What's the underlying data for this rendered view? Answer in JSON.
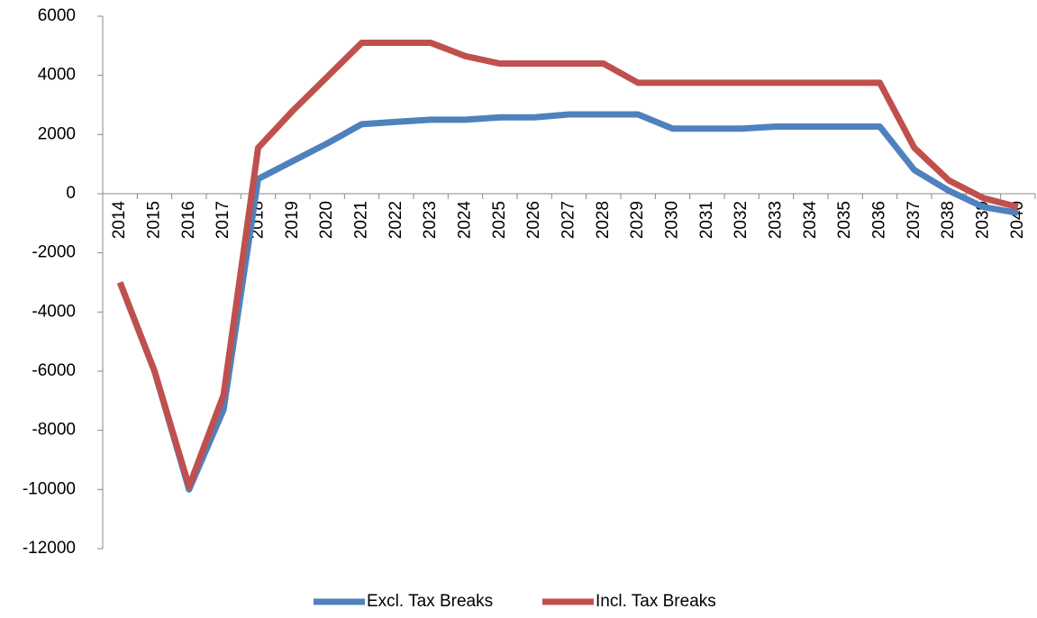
{
  "chart_data": {
    "type": "line",
    "categories": [
      "2014",
      "2015",
      "2016",
      "2017",
      "2018",
      "2019",
      "2020",
      "2021",
      "2022",
      "2023",
      "2024",
      "2025",
      "2026",
      "2027",
      "2028",
      "2029",
      "2030",
      "2031",
      "2032",
      "2033",
      "2034",
      "2035",
      "2036",
      "2037",
      "2038",
      "2039",
      "2040"
    ],
    "series": [
      {
        "name": "Excl. Tax Breaks",
        "color": "#4f81bd",
        "values": [
          -3000,
          -6000,
          -10000,
          -7300,
          500,
          1100,
          1700,
          2350,
          2430,
          2500,
          2500,
          2580,
          2580,
          2680,
          2680,
          2680,
          2200,
          2200,
          2200,
          2270,
          2270,
          2270,
          2270,
          800,
          100,
          -450,
          -650
        ]
      },
      {
        "name": "Incl. Tax Breaks",
        "color": "#c0504d",
        "values": [
          -3000,
          -6000,
          -9900,
          -6800,
          1550,
          2800,
          3950,
          5100,
          5100,
          5100,
          4650,
          4400,
          4400,
          4400,
          4400,
          3750,
          3750,
          3750,
          3750,
          3750,
          3750,
          3750,
          3750,
          1550,
          450,
          -150,
          -450
        ]
      }
    ],
    "ylim": [
      -12000,
      6000
    ],
    "yticks": [
      -12000,
      -10000,
      -8000,
      -6000,
      -4000,
      -2000,
      0,
      2000,
      4000,
      6000
    ],
    "legend": "bottom"
  }
}
